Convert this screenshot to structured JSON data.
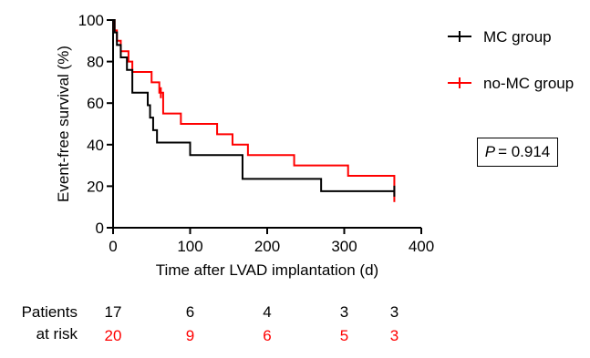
{
  "chart_data": {
    "type": "line",
    "subtype": "kaplan-meier step",
    "title": "",
    "xlabel": "Time after LVAD implantation (d)",
    "ylabel": "Event-free survival (%)",
    "xlim": [
      0,
      400
    ],
    "ylim": [
      0,
      100
    ],
    "xticks": [
      0,
      100,
      200,
      300,
      400
    ],
    "yticks": [
      0,
      20,
      40,
      60,
      80,
      100
    ],
    "grid": false,
    "legend_position": "right",
    "series": [
      {
        "name": "MC group",
        "color": "#000000",
        "x": [
          0,
          2,
          5,
          10,
          18,
          25,
          45,
          48,
          52,
          57,
          100,
          168,
          270,
          365
        ],
        "y": [
          100,
          94,
          88,
          82,
          76,
          65,
          59,
          53,
          47,
          41,
          35,
          23.5,
          17.6,
          17.6
        ],
        "censored": [
          365
        ]
      },
      {
        "name": "no-MC group",
        "color": "#ff0000",
        "x": [
          0,
          2,
          5,
          10,
          20,
          25,
          50,
          60,
          65,
          88,
          135,
          155,
          175,
          235,
          305,
          365
        ],
        "y": [
          100,
          95,
          90,
          85,
          80,
          75,
          70,
          65,
          55,
          50,
          45,
          40,
          35,
          30,
          25,
          15
        ],
        "censored": [
          62,
          365
        ]
      }
    ],
    "annotation": {
      "p_label": "P",
      "p_value": "= 0.914"
    },
    "risk_table": {
      "row_label_1": "Patients",
      "row_label_2": "at risk",
      "times": [
        0,
        100,
        200,
        300,
        365
      ],
      "mc_counts": [
        "17",
        "6",
        "4",
        "3",
        "3"
      ],
      "nomc_counts": [
        "20",
        "9",
        "6",
        "5",
        "3"
      ],
      "mc_color": "#000000",
      "nomc_color": "#ff0000"
    }
  }
}
